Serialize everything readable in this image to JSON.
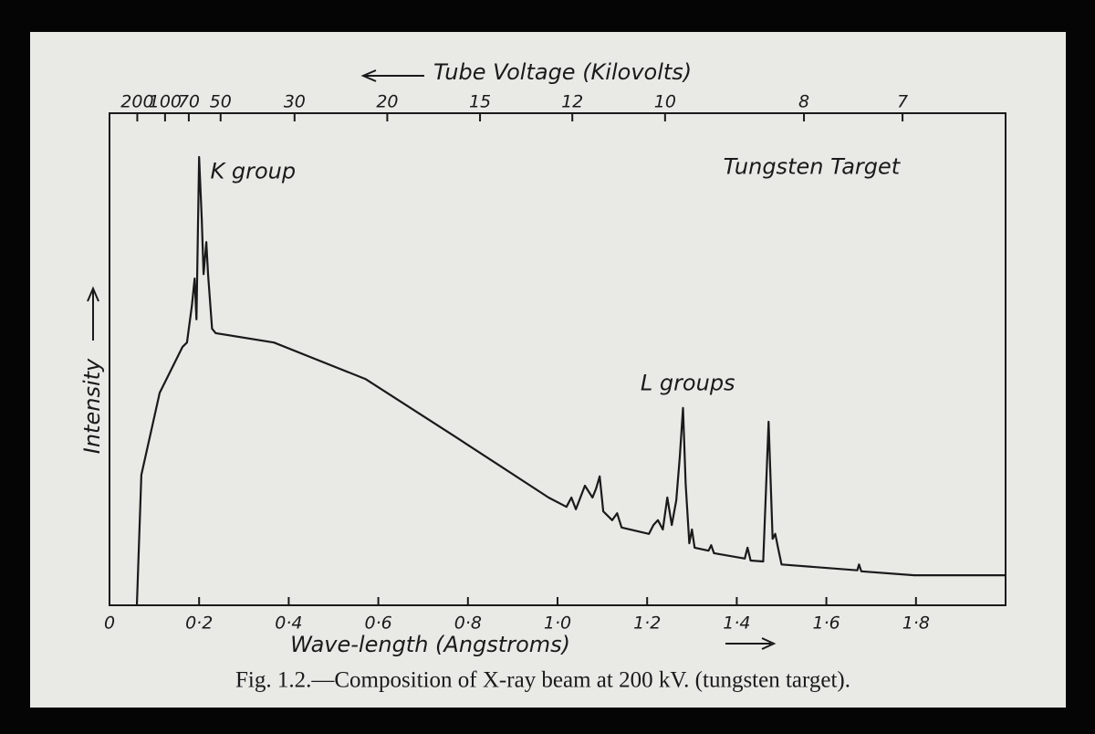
{
  "chart_data": {
    "type": "line",
    "title": "Fig. 1.2.—Composition of X-ray beam at 200 kV. (tungsten target).",
    "x_label": "Wave-length (Angstroms)",
    "x2_label": "Tube Voltage (Kilovolts)",
    "y_label": "Intensity",
    "annotations": [
      {
        "text": "K group",
        "x": 0.225,
        "y": 88
      },
      {
        "text": "Tungsten Target",
        "x": 1.37,
        "y": 89
      },
      {
        "text": "L groups",
        "x": 1.185,
        "y": 45
      }
    ],
    "xlim": [
      0,
      2.0
    ],
    "ylim": [
      0,
      100
    ],
    "xticks": [
      0,
      {
        "value": 0.2,
        "label": "0·2"
      },
      {
        "value": 0.4,
        "label": "0·4"
      },
      {
        "value": 0.6,
        "label": "0·6"
      },
      {
        "value": 0.8,
        "label": "0·8"
      },
      {
        "value": 1.0,
        "label": "1·0"
      },
      {
        "value": 1.2,
        "label": "1·2"
      },
      {
        "value": 1.4,
        "label": "1·4"
      },
      {
        "value": 1.6,
        "label": "1·6"
      },
      {
        "value": 1.8,
        "label": "1·8"
      }
    ],
    "x2ticks": [
      {
        "value": 0.062,
        "label": "200"
      },
      {
        "value": 0.124,
        "label": "100"
      },
      {
        "value": 0.177,
        "label": "70"
      },
      {
        "value": 0.248,
        "label": "50"
      },
      {
        "value": 0.413,
        "label": "30"
      },
      {
        "value": 0.62,
        "label": "20"
      },
      {
        "value": 0.827,
        "label": "15"
      },
      {
        "value": 1.033,
        "label": "12"
      },
      {
        "value": 1.24,
        "label": "10"
      },
      {
        "value": 1.55,
        "label": "8"
      },
      {
        "value": 1.77,
        "label": "7"
      }
    ],
    "color": "#1a1a1a",
    "x": [
      0.061,
      0.071,
      0.112,
      0.163,
      0.173,
      0.184,
      0.19,
      0.194,
      0.2,
      0.206,
      0.21,
      0.216,
      0.22,
      0.229,
      0.237,
      0.367,
      0.571,
      0.776,
      0.98,
      1.02,
      1.031,
      1.041,
      1.061,
      1.078,
      1.086,
      1.094,
      1.102,
      1.122,
      1.133,
      1.143,
      1.204,
      1.214,
      1.224,
      1.235,
      1.245,
      1.255,
      1.265,
      1.273,
      1.28,
      1.286,
      1.294,
      1.3,
      1.306,
      1.337,
      1.343,
      1.349,
      1.418,
      1.424,
      1.431,
      1.459,
      1.465,
      1.471,
      1.48,
      1.486,
      1.492,
      1.5,
      1.669,
      1.673,
      1.678,
      1.796,
      2.0
    ],
    "values": [
      0,
      26.5,
      43.2,
      52.5,
      53.4,
      60.9,
      66.4,
      58.1,
      91.1,
      78.5,
      67.3,
      73.8,
      67.3,
      56.2,
      55.3,
      53.4,
      46.0,
      34.0,
      21.9,
      20.0,
      21.9,
      19.5,
      24.3,
      21.9,
      23.7,
      26.2,
      19.1,
      17.3,
      18.7,
      15.8,
      14.5,
      16.3,
      17.3,
      15.4,
      21.9,
      16.3,
      21.3,
      30.2,
      40.1,
      24.7,
      12.6,
      15.4,
      11.7,
      11.1,
      12.2,
      10.6,
      9.5,
      11.7,
      9.1,
      8.9,
      22.8,
      37.3,
      13.5,
      14.5,
      11.7,
      8.3,
      7.1,
      8.3,
      6.9,
      6.1,
      6.1
    ]
  }
}
